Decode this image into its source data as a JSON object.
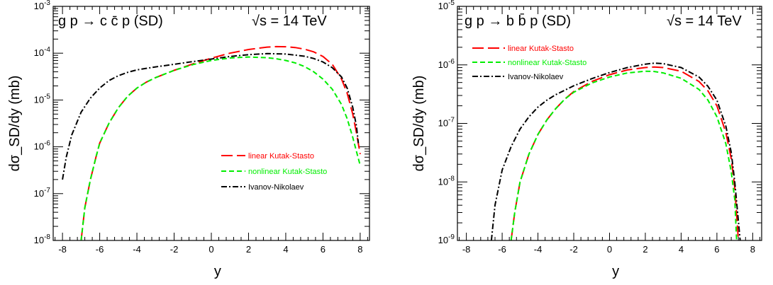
{
  "chart_data": [
    {
      "type": "line",
      "title": "g p → c c̄ p (SD)",
      "energy_label": "√s = 14 TeV",
      "xlabel": "y",
      "ylabel": "dσ_SD/dy (mb)",
      "xlim": [
        -8.5,
        8.5
      ],
      "ylim": [
        1e-08,
        0.001
      ],
      "yscale": "log",
      "x_ticks": [
        -8,
        -6,
        -4,
        -2,
        0,
        2,
        4,
        6,
        8
      ],
      "x_tick_labels": [
        "-8",
        "-6",
        "-4",
        "-2",
        "0",
        "2",
        "4",
        "6",
        "8"
      ],
      "y_tick_labels": [
        {
          "base": "10",
          "exp": "-8"
        },
        {
          "base": "10",
          "exp": "-7"
        },
        {
          "base": "10",
          "exp": "-6"
        },
        {
          "base": "10",
          "exp": "-5"
        },
        {
          "base": "10",
          "exp": "-4"
        },
        {
          "base": "10",
          "exp": "-3"
        }
      ],
      "legend_position": "lower-right",
      "series": [
        {
          "name": "linear Kutak-Stasto",
          "color": "#ff0000",
          "style": "long-dash",
          "x": [
            -7.0,
            -6.8,
            -6.5,
            -6.2,
            -6.0,
            -5.5,
            -5.0,
            -4.5,
            -4.0,
            -3.5,
            -3.0,
            -2.0,
            -1.0,
            0.0,
            1.0,
            2.0,
            3.0,
            3.5,
            4.0,
            4.5,
            5.0,
            5.5,
            6.0,
            6.5,
            7.0,
            7.3,
            7.6,
            7.8,
            8.0
          ],
          "y": [
            1e-08,
            5e-08,
            2e-07,
            6e-07,
            1.2e-06,
            3.2e-06,
            6.8e-06,
            1.2e-05,
            1.8e-05,
            2.4e-05,
            3e-05,
            4.3e-05,
            5.9e-05,
            7.8e-05,
            0.0001,
            0.00012,
            0.000135,
            0.000138,
            0.000137,
            0.000132,
            0.000122,
            0.000107,
            8.5e-05,
            5.8e-05,
            2.8e-05,
            1.4e-05,
            5e-06,
            2e-06,
            7e-07
          ]
        },
        {
          "name": "nonlinear Kutak-Stasto",
          "color": "#00ee00",
          "style": "short-dash",
          "x": [
            -7.0,
            -6.8,
            -6.5,
            -6.2,
            -6.0,
            -5.5,
            -5.0,
            -4.5,
            -4.0,
            -3.5,
            -3.0,
            -2.0,
            -1.0,
            0.0,
            1.0,
            2.0,
            3.0,
            3.5,
            4.0,
            4.5,
            5.0,
            5.5,
            6.0,
            6.5,
            7.0,
            7.3,
            7.6,
            7.8,
            8.0
          ],
          "y": [
            1e-08,
            5e-08,
            2e-07,
            6e-07,
            1.2e-06,
            3.2e-06,
            6.8e-06,
            1.2e-05,
            1.8e-05,
            2.4e-05,
            3e-05,
            4.3e-05,
            5.7e-05,
            7e-05,
            7.9e-05,
            8.3e-05,
            8e-05,
            7.6e-05,
            7e-05,
            6.2e-05,
            5.2e-05,
            4e-05,
            2.8e-05,
            1.7e-05,
            8e-06,
            4e-06,
            1.6e-06,
            8e-07,
            4e-07
          ]
        },
        {
          "name": "Ivanov-Nikolaev",
          "color": "#000000",
          "style": "dash-dot",
          "x": [
            -8.0,
            -7.8,
            -7.5,
            -7.0,
            -6.5,
            -6.0,
            -5.5,
            -5.0,
            -4.5,
            -4.0,
            -3.0,
            -2.0,
            -1.0,
            0.0,
            1.0,
            2.0,
            3.0,
            4.0,
            5.0,
            5.5,
            6.0,
            6.5,
            7.0,
            7.3,
            7.6,
            7.8,
            7.9
          ],
          "y": [
            2e-07,
            6e-07,
            1.8e-06,
            5.5e-06,
            1.1e-05,
            1.8e-05,
            2.6e-05,
            3.3e-05,
            3.9e-05,
            4.4e-05,
            5.1e-05,
            5.8e-05,
            6.6e-05,
            7.5e-05,
            8.5e-05,
            9.3e-05,
            9.8e-05,
            9.6e-05,
            8.6e-05,
            7.7e-05,
            6.5e-05,
            4.9e-05,
            3.1e-05,
            1.8e-05,
            7e-06,
            2.8e-06,
            1.2e-06
          ]
        }
      ]
    },
    {
      "type": "line",
      "title": "g p → b b̄ p (SD)",
      "energy_label": "√s = 14 TeV",
      "xlabel": "y",
      "ylabel": "dσ_SD/dy (mb)",
      "xlim": [
        -8.5,
        8.5
      ],
      "ylim": [
        1e-09,
        1e-05
      ],
      "yscale": "log",
      "x_ticks": [
        -8,
        -6,
        -4,
        -2,
        0,
        2,
        4,
        6,
        8
      ],
      "x_tick_labels": [
        "-8",
        "-6",
        "-4",
        "-2",
        "0",
        "2",
        "4",
        "6",
        "8"
      ],
      "y_tick_labels": [
        {
          "base": "10",
          "exp": "-9"
        },
        {
          "base": "10",
          "exp": "-8"
        },
        {
          "base": "10",
          "exp": "-7"
        },
        {
          "base": "10",
          "exp": "-6"
        },
        {
          "base": "10",
          "exp": "-5"
        }
      ],
      "legend_position": "top-left",
      "series": [
        {
          "name": "linear Kutak-Stasto",
          "color": "#ff0000",
          "style": "long-dash",
          "x": [
            -5.5,
            -5.3,
            -5.0,
            -4.5,
            -4.0,
            -3.5,
            -3.0,
            -2.5,
            -2.0,
            -1.0,
            0.0,
            1.0,
            2.0,
            2.5,
            3.0,
            4.0,
            5.0,
            5.5,
            6.0,
            6.5,
            6.8,
            7.0,
            7.2
          ],
          "y": [
            1e-09,
            3e-09,
            1e-08,
            3e-08,
            6.5e-08,
            1.15e-07,
            1.8e-07,
            2.6e-07,
            3.5e-07,
            5.2e-07,
            6.8e-07,
            8.2e-07,
            9e-07,
            9.2e-07,
            9e-07,
            7.8e-07,
            5.2e-07,
            3.6e-07,
            2e-07,
            7e-08,
            2.5e-08,
            8e-09,
            1e-09
          ]
        },
        {
          "name": "nonlinear Kutak-Stasto",
          "color": "#00ee00",
          "style": "short-dash",
          "x": [
            -5.5,
            -5.3,
            -5.0,
            -4.5,
            -4.0,
            -3.5,
            -3.0,
            -2.5,
            -2.0,
            -1.0,
            0.0,
            1.0,
            2.0,
            2.5,
            3.0,
            4.0,
            5.0,
            5.5,
            6.0,
            6.5,
            6.8,
            7.0,
            7.1
          ],
          "y": [
            1e-09,
            3e-09,
            1e-08,
            3e-08,
            6.5e-08,
            1.15e-07,
            1.8e-07,
            2.6e-07,
            3.4e-07,
            4.9e-07,
            6.2e-07,
            7.3e-07,
            7.8e-07,
            7.7e-07,
            7.3e-07,
            5.9e-07,
            3.8e-07,
            2.5e-07,
            1.3e-07,
            4.5e-08,
            1.5e-08,
            5e-09,
            1e-09
          ]
        },
        {
          "name": "Ivanov-Nikolaev",
          "color": "#000000",
          "style": "dash-dot",
          "x": [
            -6.6,
            -6.4,
            -6.0,
            -5.5,
            -5.0,
            -4.5,
            -4.0,
            -3.5,
            -3.0,
            -2.0,
            -1.0,
            0.0,
            1.0,
            2.0,
            2.5,
            3.0,
            4.0,
            5.0,
            5.5,
            6.0,
            6.5,
            6.8,
            7.0,
            7.3
          ],
          "y": [
            1e-09,
            4e-09,
            1.6e-08,
            4e-08,
            8e-08,
            1.3e-07,
            1.9e-07,
            2.5e-07,
            3.1e-07,
            4.4e-07,
            5.8e-07,
            7.4e-07,
            9e-07,
            1.03e-06,
            1.07e-06,
            1.05e-06,
            9e-07,
            6.2e-07,
            4.3e-07,
            2.5e-07,
            9e-08,
            3.2e-08,
            1e-08,
            1e-09
          ]
        }
      ]
    }
  ]
}
